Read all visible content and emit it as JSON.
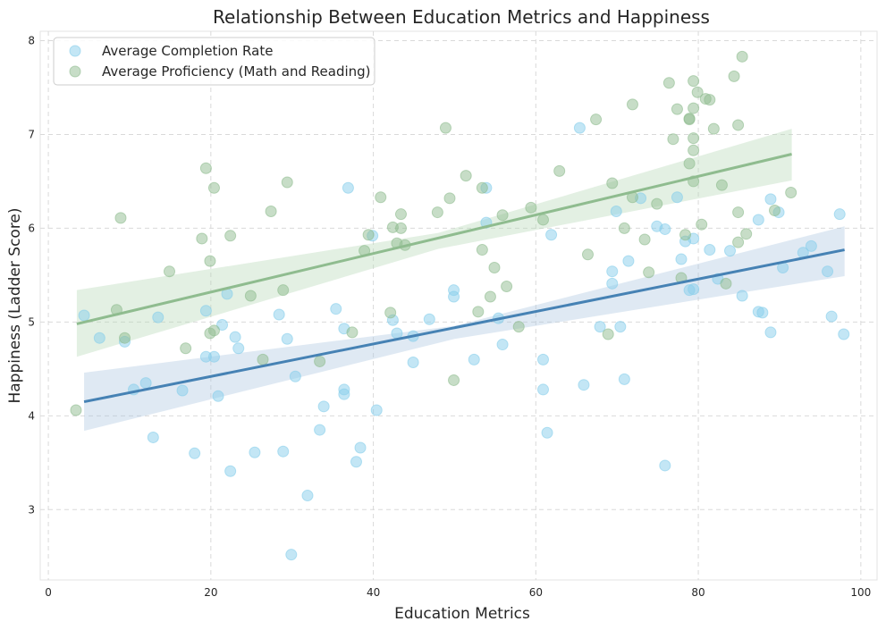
{
  "chart_data": {
    "type": "scatter",
    "title": "Relationship Between Education Metrics and Happiness",
    "xlabel": "Education Metrics",
    "ylabel": "Happiness (Ladder Score)",
    "xlim": [
      -1,
      102
    ],
    "ylim": [
      2.25,
      8.1
    ],
    "xticks": [
      0,
      20,
      40,
      60,
      80,
      100
    ],
    "yticks": [
      3,
      4,
      5,
      6,
      7,
      8
    ],
    "grid": true,
    "legend_position": "top-left",
    "series": [
      {
        "name": "Average Completion Rate",
        "color": "#87CEEB",
        "regression": {
          "x_range": [
            4.4,
            98
          ],
          "line": [
            [
              4.4,
              4.15
            ],
            [
              98,
              5.77
            ]
          ],
          "ci_upper": [
            [
              4.4,
              4.46
            ],
            [
              50,
              4.96
            ],
            [
              98,
              6.02
            ]
          ],
          "ci_lower": [
            [
              4.4,
              3.84
            ],
            [
              50,
              4.82
            ],
            [
              98,
              5.49
            ]
          ],
          "line_color": "#4682B4"
        },
        "points": [
          [
            4.4,
            5.07
          ],
          [
            6.3,
            4.83
          ],
          [
            9.4,
            4.79
          ],
          [
            10.5,
            4.28
          ],
          [
            12,
            4.35
          ],
          [
            12.9,
            3.77
          ],
          [
            13.5,
            5.05
          ],
          [
            16.5,
            4.27
          ],
          [
            18,
            3.6
          ],
          [
            19.4,
            4.63
          ],
          [
            19.4,
            5.12
          ],
          [
            20.4,
            4.63
          ],
          [
            20.9,
            4.21
          ],
          [
            21.4,
            4.97
          ],
          [
            22,
            5.3
          ],
          [
            22.4,
            3.41
          ],
          [
            23,
            4.84
          ],
          [
            23.4,
            4.72
          ],
          [
            25.4,
            3.61
          ],
          [
            28.4,
            5.08
          ],
          [
            28.9,
            3.62
          ],
          [
            29.4,
            4.82
          ],
          [
            29.9,
            2.52
          ],
          [
            30.4,
            4.42
          ],
          [
            31.9,
            3.15
          ],
          [
            33.4,
            3.85
          ],
          [
            33.9,
            4.1
          ],
          [
            35.4,
            5.14
          ],
          [
            36.4,
            4.93
          ],
          [
            36.4,
            4.28
          ],
          [
            36.4,
            4.23
          ],
          [
            36.9,
            6.43
          ],
          [
            37.9,
            3.51
          ],
          [
            38.4,
            3.66
          ],
          [
            39.9,
            5.92
          ],
          [
            40.4,
            4.06
          ],
          [
            42.4,
            5.02
          ],
          [
            42.9,
            4.88
          ],
          [
            44.9,
            4.57
          ],
          [
            44.9,
            4.85
          ],
          [
            46.9,
            5.03
          ],
          [
            49.9,
            5.34
          ],
          [
            49.9,
            5.27
          ],
          [
            52.4,
            4.6
          ],
          [
            53.9,
            6.43
          ],
          [
            53.9,
            6.06
          ],
          [
            55.4,
            5.04
          ],
          [
            55.9,
            4.76
          ],
          [
            60.9,
            4.6
          ],
          [
            60.9,
            4.28
          ],
          [
            61.4,
            3.82
          ],
          [
            61.9,
            5.93
          ],
          [
            65.4,
            7.07
          ],
          [
            65.9,
            4.33
          ],
          [
            67.9,
            4.95
          ],
          [
            69.4,
            5.41
          ],
          [
            69.4,
            5.54
          ],
          [
            69.9,
            6.18
          ],
          [
            70.4,
            4.95
          ],
          [
            70.9,
            4.39
          ],
          [
            71.4,
            5.65
          ],
          [
            72.9,
            6.32
          ],
          [
            74.9,
            6.02
          ],
          [
            75.9,
            3.47
          ],
          [
            75.9,
            5.99
          ],
          [
            77.4,
            6.33
          ],
          [
            77.9,
            5.67
          ],
          [
            78.4,
            5.86
          ],
          [
            78.9,
            5.34
          ],
          [
            79.4,
            5.89
          ],
          [
            79.4,
            5.35
          ],
          [
            81.4,
            5.77
          ],
          [
            82.4,
            5.46
          ],
          [
            83.9,
            5.76
          ],
          [
            85.4,
            5.28
          ],
          [
            87.4,
            6.09
          ],
          [
            87.4,
            5.11
          ],
          [
            87.9,
            5.1
          ],
          [
            88.9,
            6.31
          ],
          [
            88.9,
            4.89
          ],
          [
            89.9,
            6.17
          ],
          [
            90.4,
            5.58
          ],
          [
            92.9,
            5.74
          ],
          [
            93.9,
            5.81
          ],
          [
            95.9,
            5.54
          ],
          [
            96.4,
            5.06
          ],
          [
            97.4,
            6.15
          ],
          [
            97.9,
            4.87
          ]
        ]
      },
      {
        "name": "Average Proficiency (Math and Reading)",
        "color": "#8FBC8F",
        "regression": {
          "x_range": [
            3.5,
            91.5
          ],
          "line": [
            [
              3.5,
              4.98
            ],
            [
              91.5,
              6.79
            ]
          ],
          "ci_upper": [
            [
              3.5,
              5.34
            ],
            [
              48,
              5.95
            ],
            [
              91.5,
              7.06
            ]
          ],
          "ci_lower": [
            [
              3.5,
              4.63
            ],
            [
              48,
              5.78
            ],
            [
              91.5,
              6.51
            ]
          ],
          "line_color": "#8FBC8F"
        },
        "points": [
          [
            3.4,
            4.06
          ],
          [
            8.4,
            5.13
          ],
          [
            8.9,
            6.11
          ],
          [
            9.4,
            4.83
          ],
          [
            14.9,
            5.54
          ],
          [
            16.9,
            4.72
          ],
          [
            18.9,
            5.89
          ],
          [
            19.4,
            6.64
          ],
          [
            19.9,
            5.65
          ],
          [
            19.9,
            4.88
          ],
          [
            20.4,
            4.91
          ],
          [
            20.4,
            6.43
          ],
          [
            22.4,
            5.92
          ],
          [
            24.9,
            5.28
          ],
          [
            26.4,
            4.6
          ],
          [
            27.4,
            6.18
          ],
          [
            28.9,
            5.34
          ],
          [
            29.4,
            6.49
          ],
          [
            33.4,
            4.58
          ],
          [
            37.4,
            4.89
          ],
          [
            38.9,
            5.76
          ],
          [
            39.4,
            5.93
          ],
          [
            40.9,
            6.33
          ],
          [
            42.1,
            5.1
          ],
          [
            42.4,
            6.01
          ],
          [
            42.9,
            5.84
          ],
          [
            43.4,
            6.15
          ],
          [
            43.4,
            6.0
          ],
          [
            43.9,
            5.82
          ],
          [
            47.9,
            6.17
          ],
          [
            48.9,
            7.07
          ],
          [
            49.4,
            6.32
          ],
          [
            49.9,
            4.38
          ],
          [
            51.4,
            6.56
          ],
          [
            52.9,
            5.11
          ],
          [
            53.4,
            5.77
          ],
          [
            53.4,
            6.43
          ],
          [
            54.4,
            5.27
          ],
          [
            54.9,
            5.58
          ],
          [
            55.9,
            6.14
          ],
          [
            56.4,
            5.38
          ],
          [
            57.9,
            4.95
          ],
          [
            59.4,
            6.22
          ],
          [
            60.9,
            6.09
          ],
          [
            62.9,
            6.61
          ],
          [
            66.4,
            5.72
          ],
          [
            67.4,
            7.16
          ],
          [
            68.9,
            4.87
          ],
          [
            69.4,
            6.48
          ],
          [
            70.9,
            6.0
          ],
          [
            71.9,
            6.33
          ],
          [
            71.9,
            7.32
          ],
          [
            73.4,
            5.88
          ],
          [
            73.9,
            5.53
          ],
          [
            74.9,
            6.26
          ],
          [
            76.4,
            7.55
          ],
          [
            76.9,
            6.95
          ],
          [
            77.4,
            7.27
          ],
          [
            77.9,
            5.47
          ],
          [
            78.4,
            5.93
          ],
          [
            78.9,
            7.17
          ],
          [
            78.9,
            7.16
          ],
          [
            78.9,
            6.69
          ],
          [
            79.4,
            7.57
          ],
          [
            79.4,
            7.28
          ],
          [
            79.4,
            6.96
          ],
          [
            79.4,
            6.83
          ],
          [
            79.4,
            6.5
          ],
          [
            79.9,
            7.45
          ],
          [
            80.4,
            6.04
          ],
          [
            80.9,
            7.38
          ],
          [
            81.4,
            7.37
          ],
          [
            81.9,
            7.06
          ],
          [
            82.9,
            6.46
          ],
          [
            83.4,
            5.41
          ],
          [
            84.4,
            7.62
          ],
          [
            84.9,
            7.1
          ],
          [
            84.9,
            6.17
          ],
          [
            84.9,
            5.85
          ],
          [
            85.4,
            7.83
          ],
          [
            85.9,
            5.94
          ],
          [
            89.4,
            6.19
          ],
          [
            91.4,
            6.38
          ]
        ]
      }
    ]
  }
}
